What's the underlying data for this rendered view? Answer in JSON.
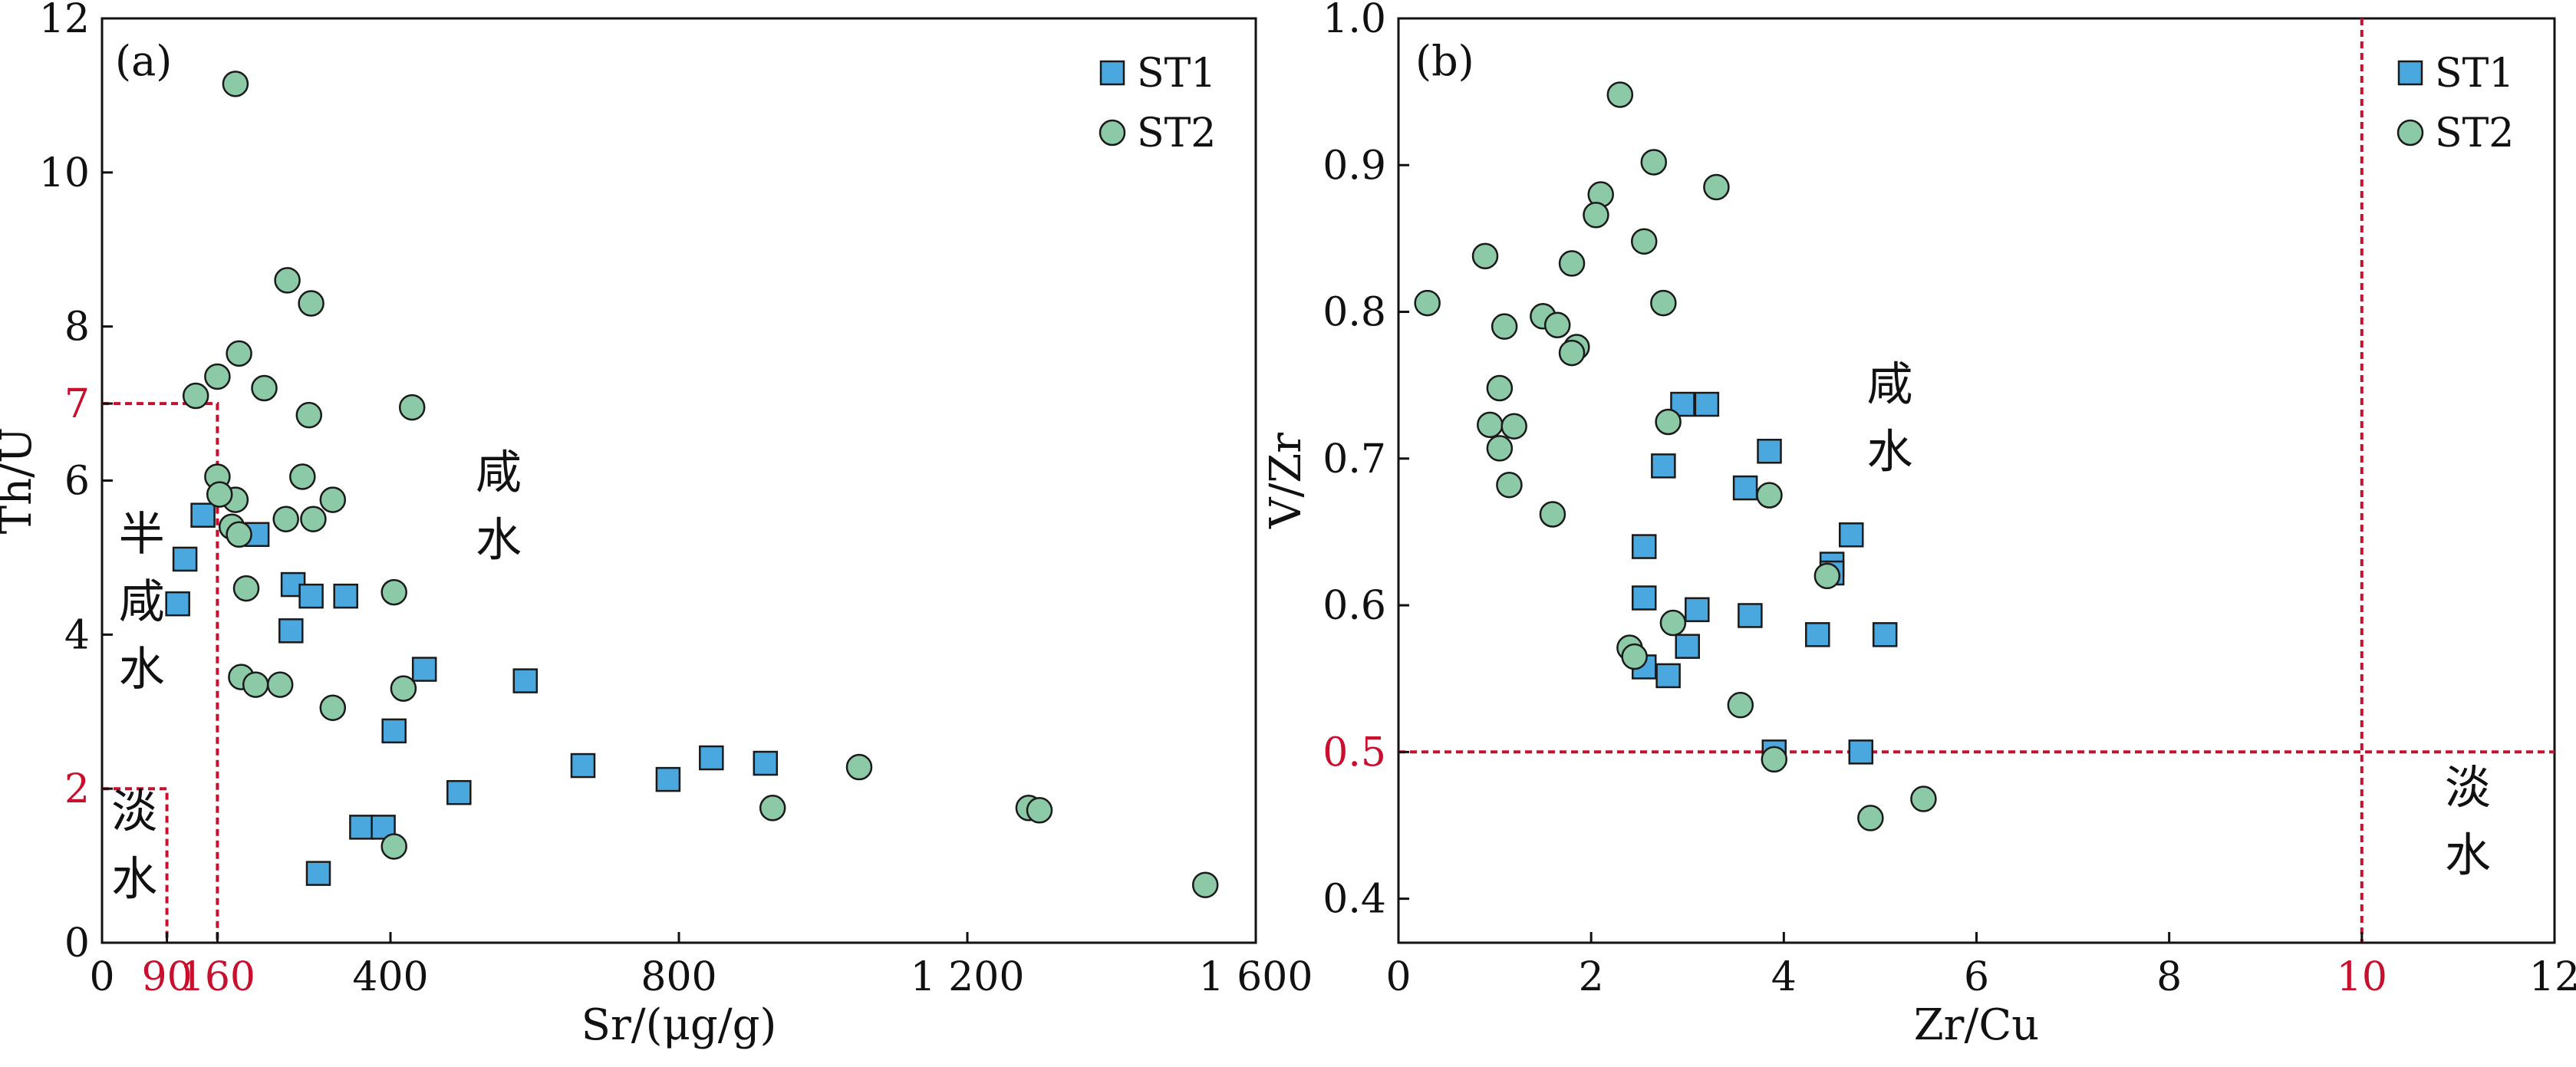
{
  "colors": {
    "st1_fill": "#4aa8df",
    "st2_fill": "#8cc9a6",
    "marker_stroke": "#1a1a1a",
    "threshold": "#c8102e",
    "axis": "#111111"
  },
  "chart_data": [
    {
      "type": "scatter",
      "panel_label": "(a)",
      "xlabel": "Sr/(μg/g)",
      "ylabel": "Th/U",
      "xlim": [
        0,
        1600
      ],
      "ylim": [
        0,
        12
      ],
      "xticks": [
        {
          "v": 0,
          "label": "0"
        },
        {
          "v": 400,
          "label": "400"
        },
        {
          "v": 800,
          "label": "800"
        },
        {
          "v": 1200,
          "label": "1 200"
        },
        {
          "v": 1600,
          "label": "1 600"
        }
      ],
      "xticks_red": [
        {
          "v": 90,
          "label": "90"
        },
        {
          "v": 160,
          "label": "160"
        }
      ],
      "yticks": [
        {
          "v": 0,
          "label": "0"
        },
        {
          "v": 4,
          "label": "4"
        },
        {
          "v": 6,
          "label": "6"
        },
        {
          "v": 8,
          "label": "8"
        },
        {
          "v": 10,
          "label": "10"
        },
        {
          "v": 12,
          "label": "12"
        }
      ],
      "yticks_red": [
        {
          "v": 2,
          "label": "2"
        },
        {
          "v": 7,
          "label": "7"
        }
      ],
      "thresholds": [
        {
          "points": [
            [
              0,
              7
            ],
            [
              160,
              7
            ],
            [
              160,
              0
            ]
          ]
        },
        {
          "points": [
            [
              0,
              2
            ],
            [
              90,
              2
            ],
            [
              90,
              0
            ]
          ]
        }
      ],
      "zones": [
        {
          "chars": [
            "咸",
            "水"
          ],
          "x": 550,
          "y": 5.9
        },
        {
          "chars": [
            "半",
            "咸",
            "水"
          ],
          "x": 55,
          "y": 5.1
        },
        {
          "chars": [
            "淡",
            "水"
          ],
          "x": 45,
          "y": 1.5
        }
      ],
      "legend_position": "top-right",
      "series": [
        {
          "name": "ST1",
          "marker": "square",
          "points": [
            [
              105,
              4.4
            ],
            [
              115,
              4.98
            ],
            [
              140,
              5.55
            ],
            [
              215,
              5.3
            ],
            [
              262,
              4.05
            ],
            [
              265,
              4.65
            ],
            [
              290,
              4.5
            ],
            [
              338,
              4.5
            ],
            [
              300,
              0.9
            ],
            [
              360,
              1.5
            ],
            [
              390,
              1.5
            ],
            [
              405,
              2.75
            ],
            [
              447,
              3.55
            ],
            [
              495,
              1.95
            ],
            [
              587,
              3.4
            ],
            [
              667,
              2.3
            ],
            [
              785,
              2.12
            ],
            [
              845,
              2.4
            ],
            [
              920,
              2.33
            ]
          ]
        },
        {
          "name": "ST2",
          "marker": "circle",
          "points": [
            [
              185,
              11.15
            ],
            [
              257,
              8.6
            ],
            [
              290,
              8.3
            ],
            [
              190,
              7.65
            ],
            [
              160,
              7.35
            ],
            [
              130,
              7.1
            ],
            [
              225,
              7.2
            ],
            [
              287,
              6.85
            ],
            [
              430,
              6.95
            ],
            [
              160,
              6.05
            ],
            [
              185,
              5.75
            ],
            [
              163,
              5.82
            ],
            [
              180,
              5.4
            ],
            [
              255,
              5.5
            ],
            [
              278,
              6.05
            ],
            [
              293,
              5.5
            ],
            [
              320,
              5.75
            ],
            [
              190,
              5.3
            ],
            [
              200,
              4.6
            ],
            [
              405,
              4.55
            ],
            [
              193,
              3.45
            ],
            [
              213,
              3.35
            ],
            [
              247,
              3.35
            ],
            [
              320,
              3.05
            ],
            [
              418,
              3.3
            ],
            [
              405,
              1.25
            ],
            [
              930,
              1.75
            ],
            [
              1050,
              2.28
            ],
            [
              1285,
              1.75
            ],
            [
              1300,
              1.72
            ],
            [
              1530,
              0.75
            ]
          ]
        }
      ]
    },
    {
      "type": "scatter",
      "panel_label": "(b)",
      "xlabel": "Zr/Cu",
      "ylabel": "V/Zr",
      "xlim": [
        0,
        12
      ],
      "ylim": [
        0.37,
        1.0
      ],
      "xticks": [
        {
          "v": 0,
          "label": "0"
        },
        {
          "v": 2,
          "label": "2"
        },
        {
          "v": 4,
          "label": "4"
        },
        {
          "v": 6,
          "label": "6"
        },
        {
          "v": 8,
          "label": "8"
        },
        {
          "v": 12,
          "label": "12"
        }
      ],
      "xticks_red": [
        {
          "v": 10,
          "label": "10"
        }
      ],
      "yticks": [
        {
          "v": 0.4,
          "label": "0.4"
        },
        {
          "v": 0.6,
          "label": "0.6"
        },
        {
          "v": 0.7,
          "label": "0.7"
        },
        {
          "v": 0.8,
          "label": "0.8"
        },
        {
          "v": 0.9,
          "label": "0.9"
        },
        {
          "v": 1.0,
          "label": "1.0"
        }
      ],
      "yticks_red": [
        {
          "v": 0.5,
          "label": "0.5"
        }
      ],
      "thresholds": [
        {
          "points": [
            [
              0,
              0.5
            ],
            [
              12,
              0.5
            ]
          ]
        },
        {
          "points": [
            [
              10,
              1.0
            ],
            [
              10,
              0.37
            ]
          ]
        }
      ],
      "zones": [
        {
          "chars": [
            "咸",
            "水"
          ],
          "x": 5.1,
          "y": 0.74
        },
        {
          "chars": [
            "淡",
            "水"
          ],
          "x": 11.1,
          "y": 0.465
        }
      ],
      "legend_position": "top-right",
      "series": [
        {
          "name": "ST1",
          "marker": "square",
          "points": [
            [
              2.95,
              0.737
            ],
            [
              3.2,
              0.737
            ],
            [
              2.75,
              0.695
            ],
            [
              3.85,
              0.705
            ],
            [
              3.6,
              0.68
            ],
            [
              2.55,
              0.64
            ],
            [
              4.7,
              0.648
            ],
            [
              4.5,
              0.628
            ],
            [
              4.5,
              0.622
            ],
            [
              2.55,
              0.605
            ],
            [
              3.1,
              0.597
            ],
            [
              3.65,
              0.593
            ],
            [
              4.35,
              0.58
            ],
            [
              5.05,
              0.58
            ],
            [
              3.0,
              0.572
            ],
            [
              2.55,
              0.558
            ],
            [
              2.8,
              0.552
            ],
            [
              3.9,
              0.5
            ],
            [
              4.8,
              0.5
            ]
          ]
        },
        {
          "name": "ST2",
          "marker": "circle",
          "points": [
            [
              2.3,
              0.948
            ],
            [
              2.65,
              0.902
            ],
            [
              2.1,
              0.88
            ],
            [
              3.3,
              0.885
            ],
            [
              2.05,
              0.866
            ],
            [
              2.55,
              0.848
            ],
            [
              0.9,
              0.838
            ],
            [
              1.8,
              0.833
            ],
            [
              0.3,
              0.806
            ],
            [
              2.75,
              0.806
            ],
            [
              1.5,
              0.797
            ],
            [
              1.65,
              0.791
            ],
            [
              1.1,
              0.79
            ],
            [
              1.85,
              0.776
            ],
            [
              1.8,
              0.772
            ],
            [
              1.05,
              0.748
            ],
            [
              0.95,
              0.723
            ],
            [
              1.2,
              0.722
            ],
            [
              2.8,
              0.725
            ],
            [
              1.05,
              0.707
            ],
            [
              1.15,
              0.682
            ],
            [
              3.85,
              0.675
            ],
            [
              1.6,
              0.662
            ],
            [
              4.45,
              0.62
            ],
            [
              2.85,
              0.588
            ],
            [
              2.4,
              0.571
            ],
            [
              2.45,
              0.565
            ],
            [
              3.55,
              0.532
            ],
            [
              3.9,
              0.495
            ],
            [
              4.9,
              0.455
            ],
            [
              5.45,
              0.468
            ]
          ]
        }
      ]
    }
  ]
}
